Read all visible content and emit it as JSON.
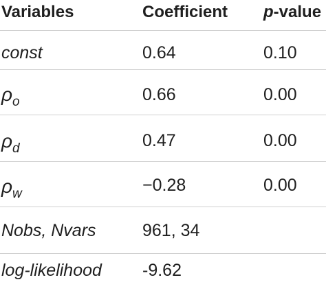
{
  "table": {
    "headers": {
      "variables": "Variables",
      "coefficient": "Coefficient",
      "pvalue_p": "p",
      "pvalue_rest": "-value"
    },
    "rows": [
      {
        "variable": "const",
        "coefficient": "0.64",
        "pvalue": "0.10"
      },
      {
        "variable_symbol": "ρ",
        "variable_sub": "o",
        "coefficient": "0.66",
        "pvalue": "0.00"
      },
      {
        "variable_symbol": "ρ",
        "variable_sub": "d",
        "coefficient": "0.47",
        "pvalue": "0.00"
      },
      {
        "variable_symbol": "ρ",
        "variable_sub": "w",
        "coefficient": "−0.28",
        "pvalue": "0.00"
      },
      {
        "variable": "Nobs, Nvars",
        "coefficient": "961, 34",
        "pvalue": ""
      },
      {
        "variable": "log-likelihood",
        "coefficient": "-9.62",
        "pvalue": ""
      }
    ]
  }
}
